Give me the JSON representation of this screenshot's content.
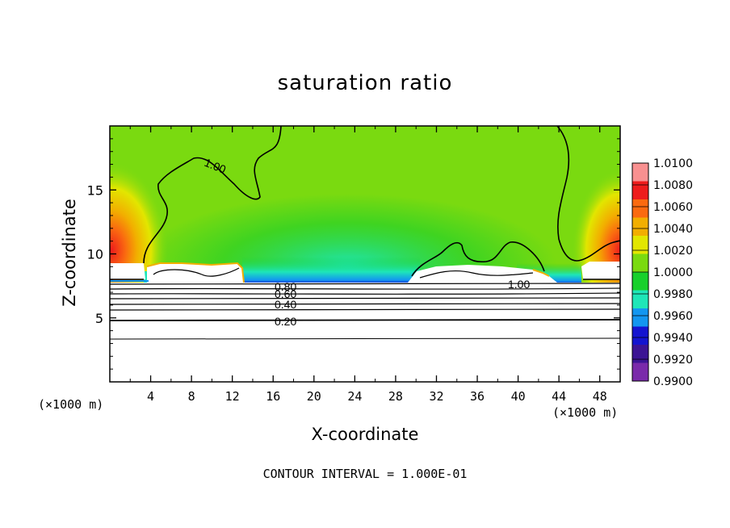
{
  "chart_data": {
    "type": "heatmap",
    "title": "saturation ratio",
    "xlabel": "X-coordinate",
    "ylabel": "Z-coordinate",
    "x_unit_label": "(×1000 m)",
    "z_unit_label": "(×1000 m)",
    "xlim": [
      0,
      50
    ],
    "ylim": [
      0,
      20
    ],
    "xticks": [
      4,
      8,
      12,
      16,
      20,
      24,
      28,
      32,
      36,
      40,
      44,
      48
    ],
    "yticks": [
      5,
      10,
      15
    ],
    "colorbar": {
      "levels": [
        "1.0100",
        "1.0080",
        "1.0060",
        "1.0040",
        "1.0020",
        "1.0000",
        "0.9980",
        "0.9960",
        "0.9940",
        "0.9920",
        "0.9900"
      ],
      "colors": [
        "#f89090",
        "#ee1c1c",
        "#fa6a10",
        "#f2ae00",
        "#e2e600",
        "#7ada10",
        "#18d02c",
        "#1ee6b8",
        "#1296f0",
        "#1414d0",
        "#3c1494",
        "#7a2aaa"
      ]
    },
    "contour_labels": [
      {
        "text": "1.00",
        "x": 9.5,
        "z": 16.8
      },
      {
        "text": "1.00",
        "x": 40.5,
        "z": 7.6
      },
      {
        "text": "0.80",
        "x": 18,
        "z": 7.3
      },
      {
        "text": "0.60",
        "x": 18,
        "z": 6.8
      },
      {
        "text": "0.40",
        "x": 18,
        "z": 6.0
      },
      {
        "text": "0.20",
        "x": 18,
        "z": 4.8
      }
    ],
    "contour_interval_text": "CONTOUR INTERVAL =  1.000E-01"
  }
}
